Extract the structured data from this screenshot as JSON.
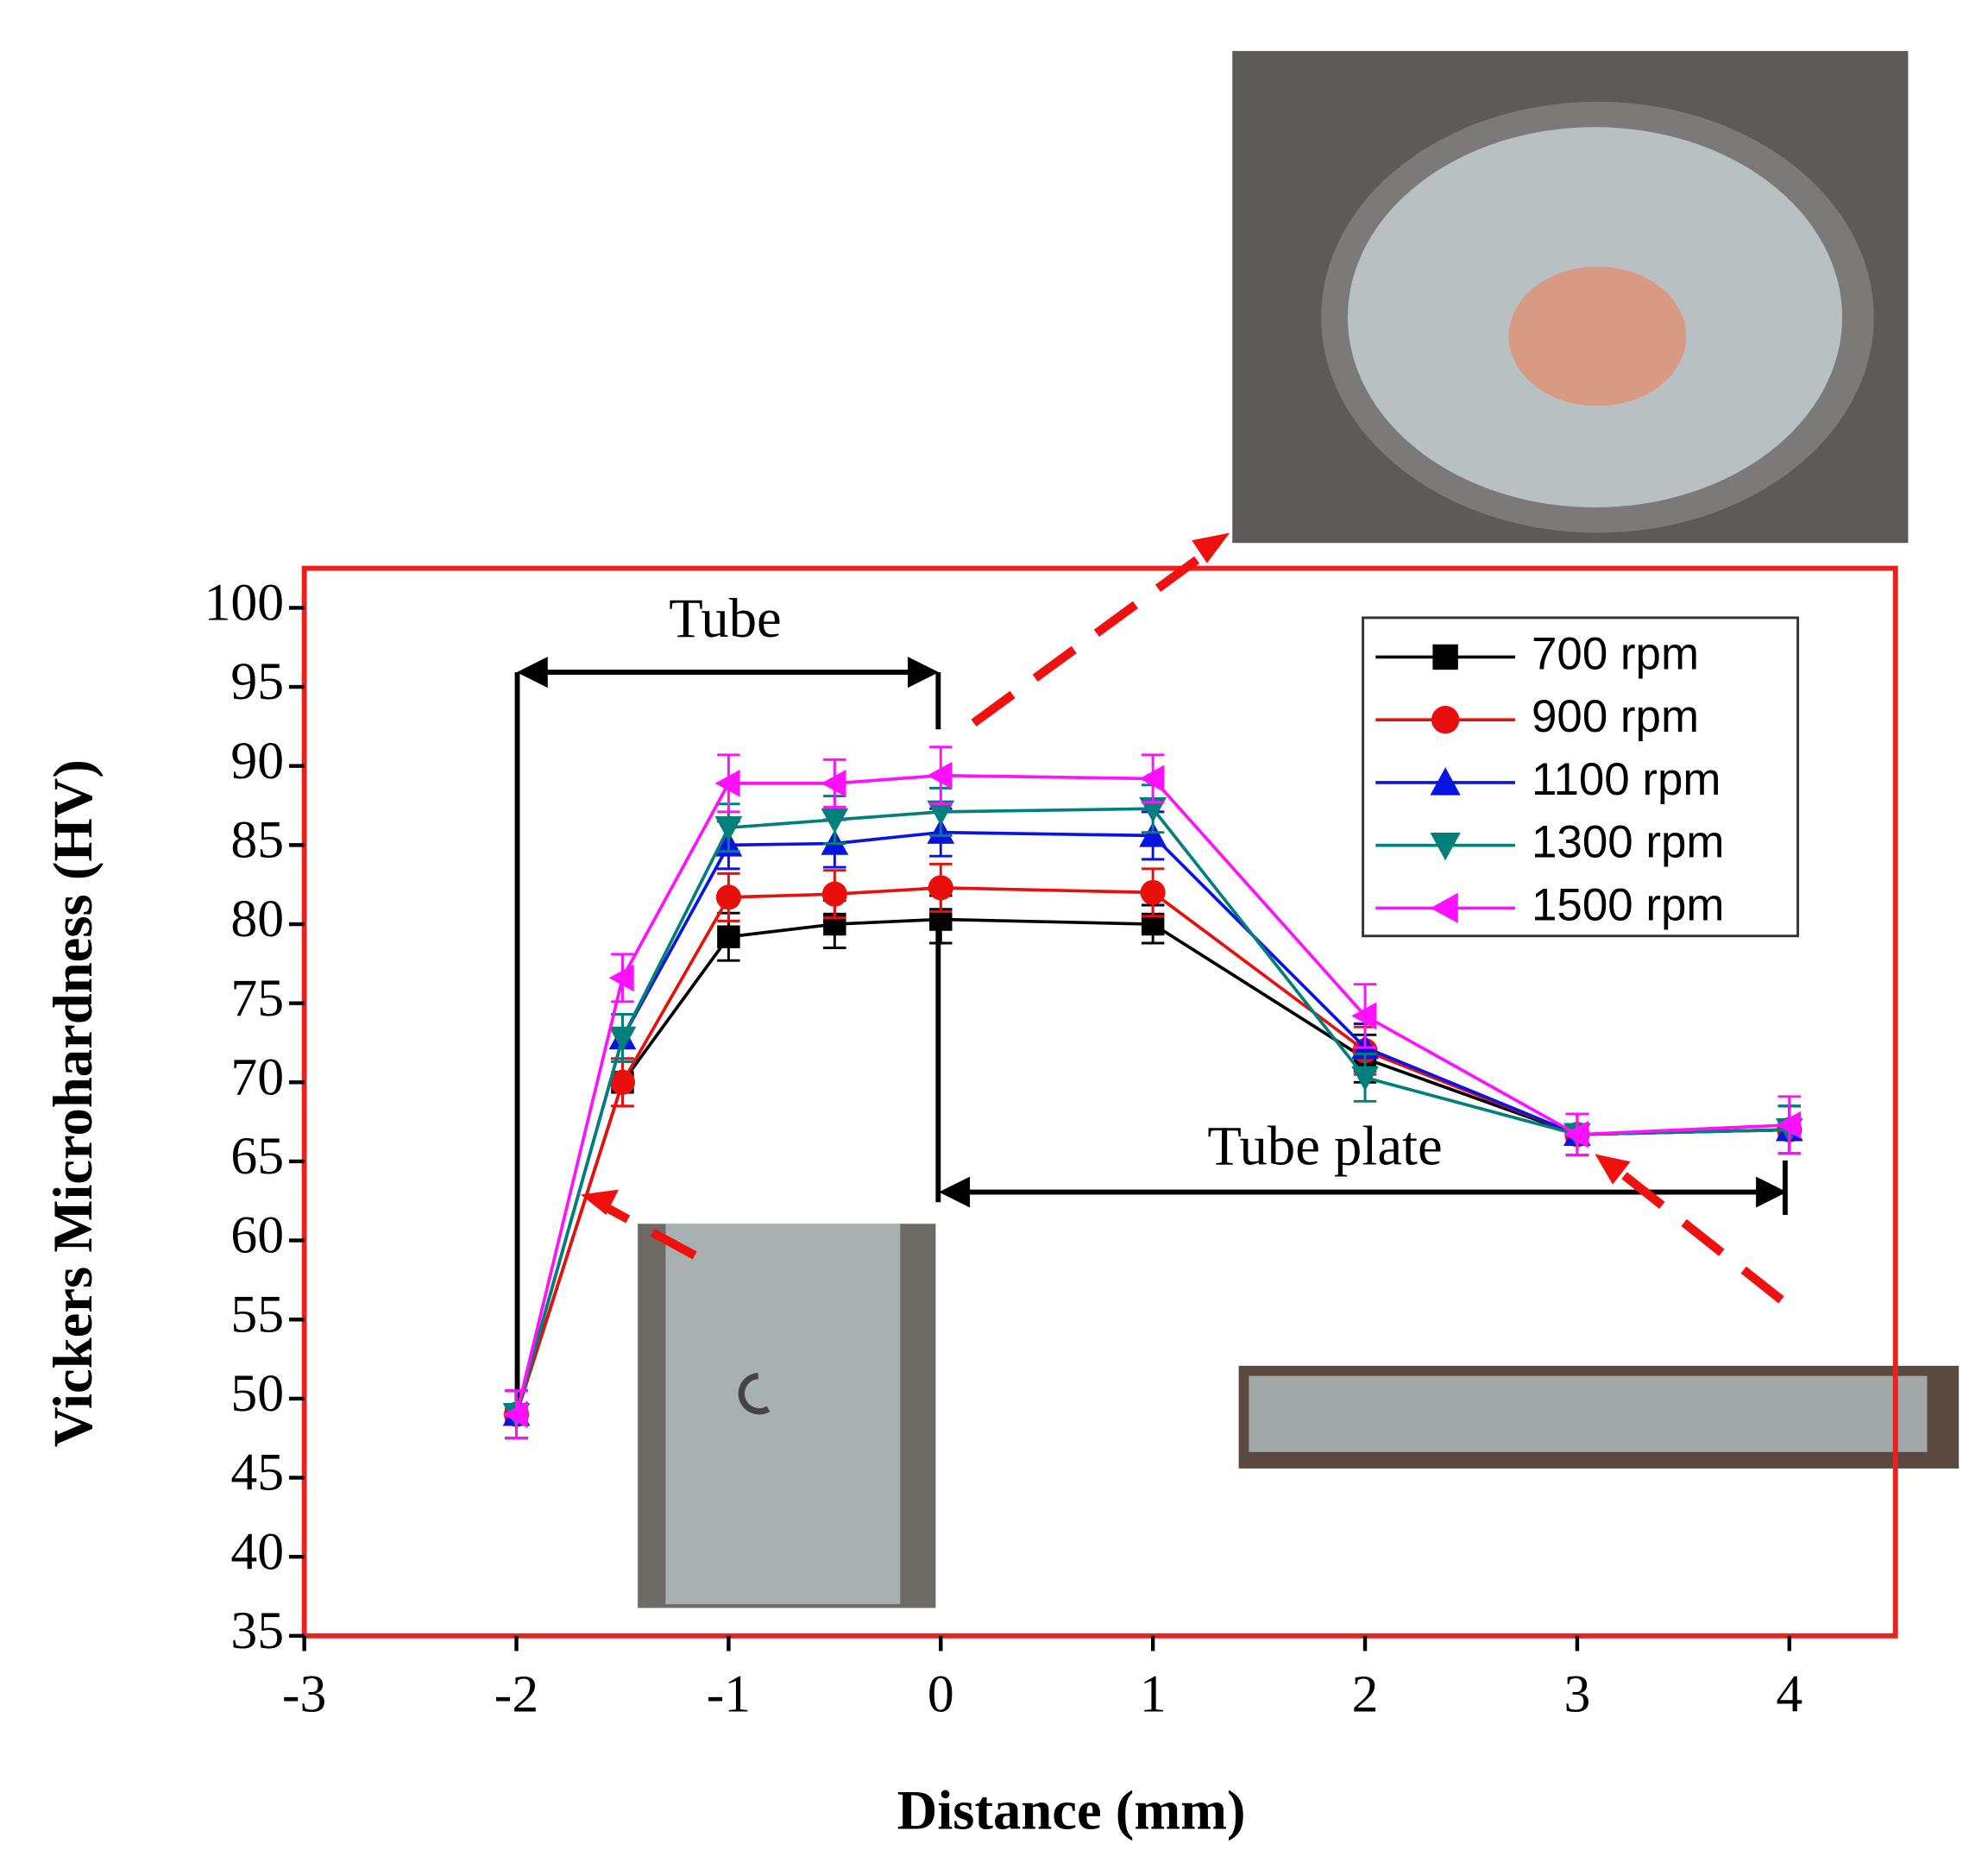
{
  "chart_data": {
    "type": "line",
    "xlabel": "Distance (mm)",
    "ylabel": "Vickers Microhardness (HV)",
    "x": [
      -2,
      -1.5,
      -1,
      -0.5,
      0,
      1,
      2,
      3,
      4
    ],
    "series": [
      {
        "name": "700 rpm",
        "color": "#000000",
        "marker": "square",
        "values": [
          49,
          70,
          79.2,
          80,
          80.3,
          80,
          71.5,
          66.7,
          67
        ],
        "errors": [
          1.5,
          1.5,
          1.5,
          1.5,
          1.5,
          1.2,
          1.5,
          1.3,
          1.5
        ]
      },
      {
        "name": "900 rpm",
        "color": "#e8100c",
        "marker": "circle",
        "values": [
          49,
          70,
          81.7,
          81.9,
          82.3,
          82,
          72,
          66.7,
          67
        ],
        "errors": [
          1.5,
          1.5,
          1.5,
          1.5,
          1.5,
          1.5,
          1.5,
          1.3,
          1.5
        ]
      },
      {
        "name": "1100 rpm",
        "color": "#0a14e0",
        "marker": "triangle-up",
        "values": [
          49,
          72.8,
          85,
          85.1,
          85.8,
          85.6,
          72.2,
          66.7,
          67
        ],
        "errors": [
          1.5,
          1.5,
          1.5,
          1.5,
          1.5,
          1.5,
          1.5,
          1.3,
          1.5
        ]
      },
      {
        "name": "1300 rpm",
        "color": "#00807a",
        "marker": "triangle-down",
        "values": [
          49,
          72.8,
          86.1,
          86.6,
          87.1,
          87.3,
          70.3,
          66.7,
          67
        ],
        "errors": [
          1.5,
          1.5,
          1.5,
          1.5,
          1.5,
          1.5,
          1.5,
          1.3,
          1.5
        ]
      },
      {
        "name": "1500 rpm",
        "color": "#ff10ff",
        "marker": "triangle-left",
        "values": [
          49,
          76.6,
          88.9,
          88.9,
          89.4,
          89.2,
          74.2,
          66.7,
          67.3
        ],
        "errors": [
          1.5,
          1.5,
          1.8,
          1.5,
          1.8,
          1.5,
          2,
          1.3,
          1.8
        ]
      }
    ],
    "xlim": [
      -3,
      4.5
    ],
    "xticks": [
      -3,
      -2,
      -1,
      0,
      1,
      2,
      3,
      4
    ],
    "ylim": [
      35,
      102.5
    ],
    "yticks": [
      35,
      40,
      45,
      50,
      55,
      60,
      65,
      70,
      75,
      80,
      85,
      90,
      95,
      100
    ],
    "annotations": [
      "Tube",
      "Tube plate"
    ],
    "legend": "upper right"
  }
}
